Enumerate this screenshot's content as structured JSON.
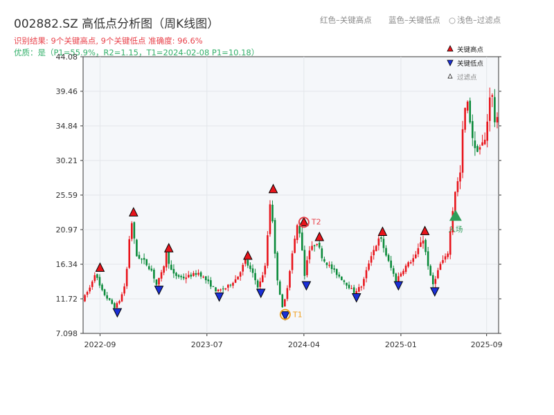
{
  "title": "002882.SZ 高低点分析图（周K线图）",
  "subtitle_red": "识别结果: 9个关键高点, 9个关键低点  准确度: 96.6%",
  "subtitle_green": "优质：是（P1=55.9%，R2=1.15，T1=2024-02-08 P1=10.18）",
  "header_legend": {
    "red": "红色–关键高点",
    "blue": "蓝色–关键低点",
    "light": "浅色–过滤点",
    "light_marker": "○"
  },
  "legend": {
    "high": "关键高点",
    "low": "关键低点",
    "filtered": "过滤点"
  },
  "annotations": {
    "t1": "T1",
    "t2": "T2",
    "entry": "入场"
  },
  "colors": {
    "up": "#e8141b",
    "down": "#0a8a3a",
    "high_marker": "#e8141b",
    "low_marker": "#1a2fd6",
    "ring": "#f0a020",
    "t2": "#e8414a",
    "entry": "#2e9e5a",
    "subtitle_red": "#e8414a",
    "subtitle_green": "#33b06a",
    "plot_bg": "#f5f7fa"
  },
  "chart_data": {
    "type": "candlestick",
    "ylim": [
      7.098,
      44.08
    ],
    "y_ticks": [
      7.098,
      11.72,
      16.34,
      20.97,
      25.59,
      30.21,
      34.84,
      39.46,
      44.08
    ],
    "y_tick_labels": [
      "7.098",
      "11.72",
      "16.34",
      "20.97",
      "25.59",
      "30.21",
      "34.84",
      "39.46",
      "44.08"
    ],
    "x_range": [
      "2022-07-15",
      "2025-10-05"
    ],
    "x_ticks": [
      "2022-09-01",
      "2023-07-01",
      "2024-04-01",
      "2025-01-01",
      "2025-09-01"
    ],
    "x_tick_labels": [
      "2022-09",
      "2023-07",
      "2024-04",
      "2025-01",
      "2025-09"
    ],
    "grid": true,
    "legend_position": "top-right",
    "price_path": [
      [
        "2022-07-20",
        11.5
      ],
      [
        "2022-08-10",
        13.2
      ],
      [
        "2022-08-25",
        15.2
      ],
      [
        "2022-09-10",
        13.0
      ],
      [
        "2022-09-25",
        12.0
      ],
      [
        "2022-10-20",
        10.6
      ],
      [
        "2022-11-05",
        11.7
      ],
      [
        "2022-11-20",
        14.0
      ],
      [
        "2022-12-05",
        22.6
      ],
      [
        "2022-12-20",
        17.5
      ],
      [
        "2023-01-10",
        16.8
      ],
      [
        "2023-02-01",
        15.5
      ],
      [
        "2023-02-15",
        13.6
      ],
      [
        "2023-03-05",
        15.5
      ],
      [
        "2023-03-15",
        17.8
      ],
      [
        "2023-04-01",
        15.0
      ],
      [
        "2023-05-01",
        14.5
      ],
      [
        "2023-06-15",
        15.2
      ],
      [
        "2023-07-10",
        14.0
      ],
      [
        "2023-08-05",
        12.7
      ],
      [
        "2023-09-01",
        13.2
      ],
      [
        "2023-10-01",
        14.5
      ],
      [
        "2023-10-25",
        16.8
      ],
      [
        "2023-11-15",
        15.0
      ],
      [
        "2023-12-01",
        13.2
      ],
      [
        "2023-12-20",
        16.0
      ],
      [
        "2024-01-05",
        25.7
      ],
      [
        "2024-01-20",
        15.5
      ],
      [
        "2024-02-08",
        10.18
      ],
      [
        "2024-02-20",
        13.0
      ],
      [
        "2024-03-05",
        17.5
      ],
      [
        "2024-03-20",
        21.5
      ],
      [
        "2024-04-01",
        20.0
      ],
      [
        "2024-04-08",
        14.2
      ],
      [
        "2024-04-20",
        18.0
      ],
      [
        "2024-05-15",
        19.3
      ],
      [
        "2024-06-01",
        17.0
      ],
      [
        "2024-07-01",
        15.5
      ],
      [
        "2024-08-01",
        14.0
      ],
      [
        "2024-08-28",
        12.6
      ],
      [
        "2024-09-20",
        13.5
      ],
      [
        "2024-10-15",
        17.5
      ],
      [
        "2024-11-10",
        20.0
      ],
      [
        "2024-12-01",
        17.0
      ],
      [
        "2024-12-25",
        14.2
      ],
      [
        "2025-01-20",
        16.0
      ],
      [
        "2025-02-20",
        17.5
      ],
      [
        "2025-03-10",
        20.1
      ],
      [
        "2025-04-07",
        13.4
      ],
      [
        "2025-05-01",
        16.5
      ],
      [
        "2025-05-20",
        17.5
      ],
      [
        "2025-06-10",
        26.0
      ],
      [
        "2025-06-25",
        28.5
      ],
      [
        "2025-07-05",
        36.5
      ],
      [
        "2025-07-15",
        38.0
      ],
      [
        "2025-07-25",
        35.0
      ],
      [
        "2025-08-05",
        31.5
      ],
      [
        "2025-08-20",
        32.0
      ],
      [
        "2025-09-05",
        33.0
      ],
      [
        "2025-09-20",
        40.5
      ],
      [
        "2025-10-01",
        35.5
      ]
    ],
    "key_highs": [
      {
        "date": "2022-09-01",
        "price": 15.2
      },
      {
        "date": "2022-12-05",
        "price": 22.6
      },
      {
        "date": "2023-03-15",
        "price": 17.8
      },
      {
        "date": "2023-10-25",
        "price": 16.8
      },
      {
        "date": "2024-01-05",
        "price": 25.7
      },
      {
        "date": "2024-04-01",
        "price": 21.3
      },
      {
        "date": "2024-05-15",
        "price": 19.3
      },
      {
        "date": "2024-11-10",
        "price": 20.0
      },
      {
        "date": "2025-03-10",
        "price": 20.1
      }
    ],
    "key_lows": [
      {
        "date": "2022-10-20",
        "price": 10.6
      },
      {
        "date": "2023-02-15",
        "price": 13.6
      },
      {
        "date": "2023-08-05",
        "price": 12.7
      },
      {
        "date": "2023-12-01",
        "price": 13.2
      },
      {
        "date": "2024-02-08",
        "price": 10.18
      },
      {
        "date": "2024-04-08",
        "price": 14.2
      },
      {
        "date": "2024-08-28",
        "price": 12.6
      },
      {
        "date": "2024-12-25",
        "price": 14.2
      },
      {
        "date": "2025-04-07",
        "price": 13.4
      }
    ],
    "t1": {
      "date": "2024-02-08",
      "price": 10.18
    },
    "t2": {
      "date": "2024-04-01",
      "price": 21.3
    },
    "entry": {
      "date": "2025-06-05",
      "price": 22.7
    }
  }
}
